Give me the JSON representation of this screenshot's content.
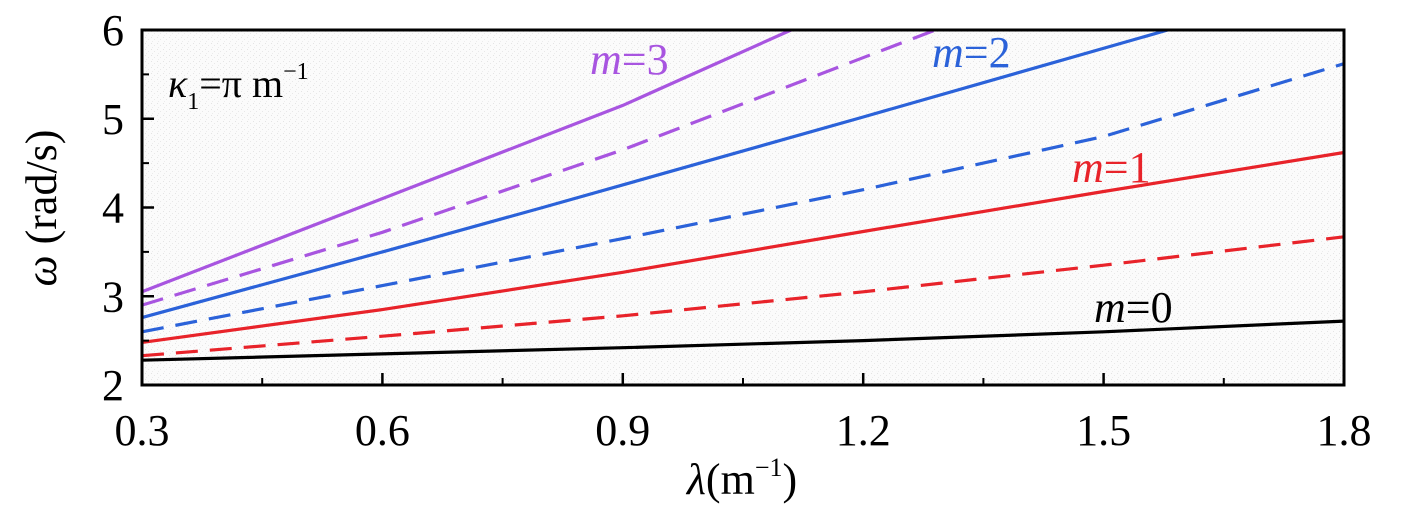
{
  "chart_data": {
    "type": "line",
    "xlabel_symbol": "λ",
    "xlabel_unit": "(m",
    "xlabel_unit_exp": "−1",
    "xlabel_unit_close": ")",
    "ylabel_symbol": "ω",
    "ylabel_unit": " (rad/s)",
    "xlim": [
      0.3,
      1.8
    ],
    "ylim": [
      2,
      6
    ],
    "xticks": [
      0.3,
      0.6,
      0.9,
      1.2,
      1.5,
      1.8
    ],
    "xtick_labels": [
      "0.3",
      "0.6",
      "0.9",
      "1.2",
      "1.5",
      "1.8"
    ],
    "xminor": [
      0.45,
      0.75,
      1.05,
      1.35,
      1.65
    ],
    "yticks": [
      2,
      3,
      4,
      5,
      6
    ],
    "ytick_labels": [
      "2",
      "3",
      "4",
      "5",
      "6"
    ],
    "yminor": [
      2.5,
      3.5,
      4.5,
      5.5
    ],
    "annotation": {
      "kappa_symbol": "κ",
      "kappa_sub": "1",
      "kappa_eq": "=π m",
      "kappa_exp": "−1"
    },
    "series": [
      {
        "name_var": "m",
        "name_val": "=0",
        "color": "#000000",
        "dash": false,
        "x": [
          0.3,
          0.6,
          0.9,
          1.2,
          1.5,
          1.8
        ],
        "y": [
          2.28,
          2.35,
          2.42,
          2.5,
          2.6,
          2.72
        ]
      },
      {
        "color": "#e8232a",
        "dash": true,
        "x": [
          0.3,
          0.6,
          0.9,
          1.2,
          1.5,
          1.8
        ],
        "y": [
          2.33,
          2.55,
          2.78,
          3.05,
          3.35,
          3.67
        ]
      },
      {
        "name_var": "m",
        "name_val": "=1",
        "color": "#e8232a",
        "dash": false,
        "x": [
          0.3,
          0.6,
          0.9,
          1.2,
          1.5,
          1.8
        ],
        "y": [
          2.48,
          2.85,
          3.27,
          3.73,
          4.18,
          4.62
        ]
      },
      {
        "color": "#2b62d9",
        "dash": true,
        "x": [
          0.3,
          0.6,
          0.9,
          1.2,
          1.5,
          1.8
        ],
        "y": [
          2.6,
          3.12,
          3.65,
          4.2,
          4.8,
          5.62
        ]
      },
      {
        "name_var": "m",
        "name_val": "=2",
        "color": "#2b62d9",
        "dash": false,
        "x": [
          0.3,
          0.6,
          0.8,
          1.2,
          1.58
        ],
        "y": [
          2.76,
          3.5,
          4.0,
          5.02,
          6.0
        ]
      },
      {
        "color": "#a855e0",
        "dash": true,
        "x": [
          0.3,
          0.6,
          0.9,
          1.29
        ],
        "y": [
          2.9,
          3.72,
          4.65,
          6.0
        ]
      },
      {
        "name_var": "m",
        "name_val": "=3",
        "color": "#a855e0",
        "dash": false,
        "x": [
          0.3,
          0.6,
          0.9,
          1.11
        ],
        "y": [
          3.05,
          4.1,
          5.15,
          6.0
        ]
      }
    ]
  }
}
